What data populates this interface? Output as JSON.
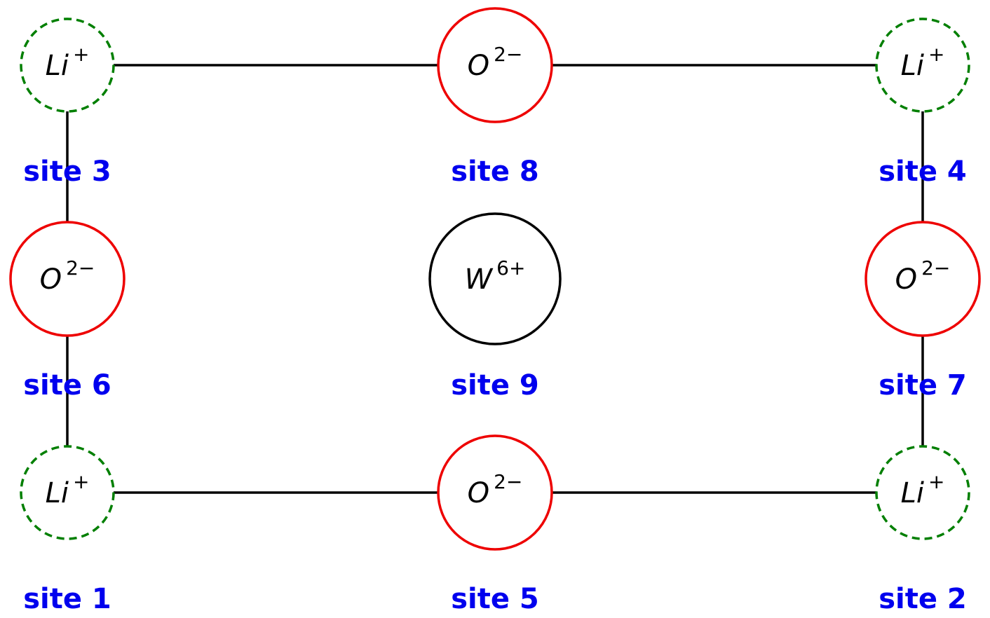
{
  "colors": {
    "lithium": "#007f00",
    "oxygen": "#ee0000",
    "tungsten": "#000000",
    "bond": "#000000",
    "label": "#0000ee"
  },
  "sites": [
    {
      "id": "site1",
      "label": "site 1",
      "ion": {
        "base": "Li",
        "charge": "+"
      },
      "element": "lithium"
    },
    {
      "id": "site2",
      "label": "site 2",
      "ion": {
        "base": "Li",
        "charge": "+"
      },
      "element": "lithium"
    },
    {
      "id": "site3",
      "label": "site 3",
      "ion": {
        "base": "Li",
        "charge": "+"
      },
      "element": "lithium"
    },
    {
      "id": "site4",
      "label": "site 4",
      "ion": {
        "base": "Li",
        "charge": "+"
      },
      "element": "lithium"
    },
    {
      "id": "site5",
      "label": "site 5",
      "ion": {
        "base": "O",
        "charge": "2−"
      },
      "element": "oxygen"
    },
    {
      "id": "site6",
      "label": "site 6",
      "ion": {
        "base": "O",
        "charge": "2−"
      },
      "element": "oxygen"
    },
    {
      "id": "site7",
      "label": "site 7",
      "ion": {
        "base": "O",
        "charge": "2−"
      },
      "element": "oxygen"
    },
    {
      "id": "site8",
      "label": "site 8",
      "ion": {
        "base": "O",
        "charge": "2−"
      },
      "element": "oxygen"
    },
    {
      "id": "site9",
      "label": "site 9",
      "ion": {
        "base": "W",
        "charge": "6+"
      },
      "element": "tungsten"
    }
  ],
  "bonds": [
    [
      "site3",
      "site8"
    ],
    [
      "site8",
      "site4"
    ],
    [
      "site1",
      "site5"
    ],
    [
      "site5",
      "site2"
    ],
    [
      "site3",
      "site6"
    ],
    [
      "site6",
      "site1"
    ],
    [
      "site4",
      "site7"
    ],
    [
      "site7",
      "site2"
    ]
  ]
}
